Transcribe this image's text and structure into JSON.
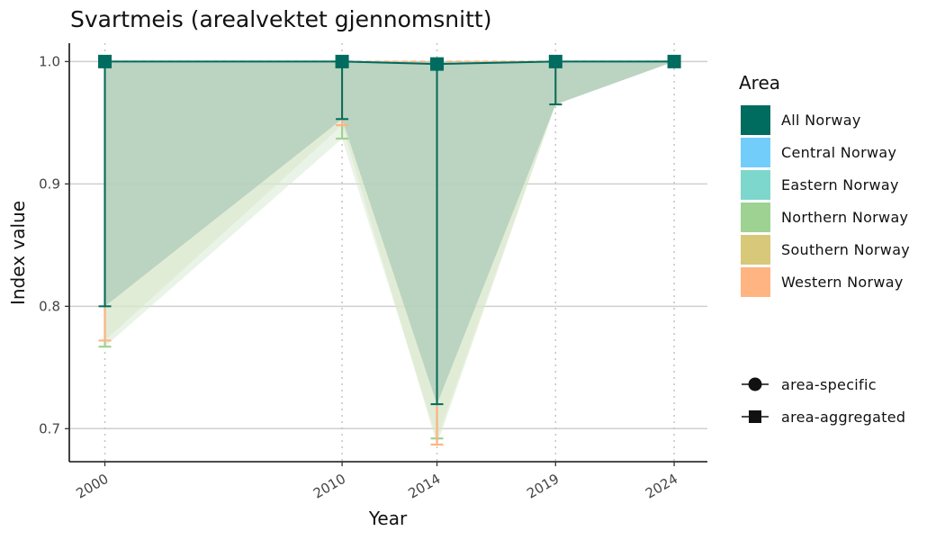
{
  "chart_data": {
    "type": "line",
    "title": "Svartmeis (arealvektet gjennomsnitt)",
    "xlabel": "Year",
    "ylabel": "Index value",
    "x": [
      2000,
      2010,
      2014,
      2019,
      2024
    ],
    "xlim": [
      1998.5,
      2025.4
    ],
    "ylim": [
      0.673,
      1.015
    ],
    "yticks": [
      0.7,
      0.8,
      0.9,
      1.0
    ],
    "ytick_labels": [
      "0.7",
      "0.8",
      "0.9",
      "1.0"
    ],
    "grid": "horizontal major lines; dotted vertical lines at data years",
    "legend_position": "right",
    "area_legend_title": "Area",
    "areas": [
      {
        "name": "All Norway",
        "color": "#006B5F"
      },
      {
        "name": "Central Norway",
        "color": "#73CDFB"
      },
      {
        "name": "Eastern Norway",
        "color": "#7DD7CD"
      },
      {
        "name": "Northern Norway",
        "color": "#9ED293"
      },
      {
        "name": "Southern Norway",
        "color": "#D7C87A"
      },
      {
        "name": "Western Norway",
        "color": "#FFB482"
      }
    ],
    "shape_legend": [
      {
        "name": "area-specific",
        "shape": "circle"
      },
      {
        "name": "area-aggregated",
        "shape": "square"
      }
    ],
    "series": [
      {
        "name": "All Norway",
        "type": "area-aggregated",
        "values": [
          1.0,
          1.0,
          0.998,
          1.0,
          1.0
        ],
        "lower": [
          0.8,
          0.953,
          0.72,
          0.965,
          1.0
        ],
        "upper": [
          1.0,
          1.0,
          1.0,
          1.0,
          1.0
        ]
      },
      {
        "name": "Western Norway",
        "type": "area-specific",
        "values": [
          1.0,
          1.0,
          1.0,
          1.0,
          1.0
        ],
        "lower": [
          0.772,
          0.948,
          0.687,
          0.965,
          1.0
        ],
        "upper": [
          1.0,
          1.0,
          1.0,
          1.0,
          1.0
        ]
      },
      {
        "name": "Northern Norway",
        "type": "area-specific",
        "values": [
          1.0,
          1.0,
          1.0,
          1.0,
          1.0
        ],
        "lower": [
          0.767,
          0.937,
          0.692,
          0.965,
          1.0
        ],
        "upper": [
          1.0,
          1.0,
          1.0,
          1.0,
          1.0
        ]
      }
    ]
  }
}
